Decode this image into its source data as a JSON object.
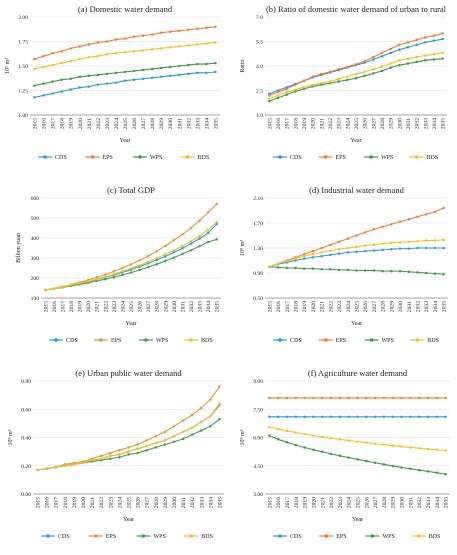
{
  "colors": {
    "CDS": "#2e9bcf",
    "EPS": "#f07d3a",
    "WPS": "#3d9a4b",
    "BDS": "#f5be2c",
    "EPS_c": "#d89b3a",
    "WPS_c": "#4b9a55",
    "grid": "#dcdcdc"
  },
  "years": [
    "2015",
    "2016",
    "2017",
    "2018",
    "2019",
    "2020",
    "2021",
    "2022",
    "2023",
    "2024",
    "2025",
    "2026",
    "2027",
    "2028",
    "2029",
    "2030",
    "2031",
    "2032",
    "2033",
    "2034",
    "2035"
  ],
  "years_f": [
    "2015",
    "2016",
    "2017",
    "2018",
    "2019",
    "2020",
    "2021",
    "2022",
    "2023",
    "2024",
    "2025",
    "2026",
    "2027",
    "2028",
    "2029",
    "2030",
    "2031",
    "2032",
    "2033",
    "2034",
    "2035"
  ],
  "years_c": [
    "2015",
    "2016",
    "2017",
    "2018",
    "2019",
    "2020",
    "2021",
    "2022",
    "2023",
    "2024",
    "2025",
    "2026",
    "2027",
    "2028",
    "2029",
    "2030",
    "2031",
    "2032",
    "2033",
    "2034",
    "2035"
  ],
  "chart_data": [
    {
      "id": "a",
      "type": "line",
      "title": "(a) Domestic water demand",
      "xlabel": "Year",
      "ylabel": "10⁹ m³",
      "ylim": [
        1.0,
        2.0
      ],
      "yticks": [
        "1.00",
        "1.25",
        "1.50",
        "1.75",
        "2.00"
      ],
      "ytick_values": [
        1.0,
        1.25,
        1.5,
        1.75,
        2.0
      ],
      "legend_position": "bottom",
      "series": [
        {
          "name": "CDS",
          "color": "#2e9bcf",
          "values": [
            1.18,
            1.2,
            1.22,
            1.24,
            1.26,
            1.28,
            1.29,
            1.31,
            1.32,
            1.33,
            1.35,
            1.36,
            1.37,
            1.38,
            1.39,
            1.4,
            1.41,
            1.42,
            1.43,
            1.43,
            1.44
          ]
        },
        {
          "name": "EPS",
          "color": "#f07d3a",
          "values": [
            1.57,
            1.6,
            1.63,
            1.65,
            1.68,
            1.7,
            1.72,
            1.74,
            1.75,
            1.77,
            1.78,
            1.8,
            1.81,
            1.82,
            1.84,
            1.85,
            1.86,
            1.87,
            1.88,
            1.89,
            1.9
          ]
        },
        {
          "name": "WPS",
          "color": "#3d9a4b",
          "values": [
            1.3,
            1.32,
            1.34,
            1.36,
            1.37,
            1.39,
            1.4,
            1.41,
            1.42,
            1.43,
            1.44,
            1.45,
            1.46,
            1.47,
            1.48,
            1.49,
            1.5,
            1.51,
            1.52,
            1.52,
            1.53
          ]
        },
        {
          "name": "BDS",
          "color": "#f5be2c",
          "values": [
            1.47,
            1.49,
            1.51,
            1.53,
            1.55,
            1.57,
            1.59,
            1.6,
            1.62,
            1.63,
            1.64,
            1.65,
            1.66,
            1.67,
            1.68,
            1.69,
            1.7,
            1.71,
            1.72,
            1.73,
            1.74
          ]
        }
      ]
    },
    {
      "id": "b",
      "type": "line",
      "title": "(b) Ratio of domestic water demand of urban to rural",
      "xlabel": "Year",
      "ylabel": "Ratio",
      "ylim": [
        1.0,
        7.0
      ],
      "yticks": [
        "1.0",
        "2.5",
        "4.0",
        "5.5",
        "7.0"
      ],
      "ytick_values": [
        1.0,
        2.5,
        4.0,
        5.5,
        7.0
      ],
      "legend_position": "bottom",
      "series": [
        {
          "name": "CDS",
          "color": "#2e9bcf",
          "values": [
            2.3,
            2.5,
            2.7,
            2.9,
            3.1,
            3.3,
            3.45,
            3.6,
            3.75,
            3.9,
            4.05,
            4.2,
            4.4,
            4.6,
            4.8,
            5.0,
            5.15,
            5.3,
            5.45,
            5.55,
            5.65
          ]
        },
        {
          "name": "EPS",
          "color": "#f07d3a",
          "values": [
            2.2,
            2.4,
            2.6,
            2.85,
            3.1,
            3.35,
            3.5,
            3.65,
            3.8,
            3.95,
            4.1,
            4.3,
            4.55,
            4.8,
            5.05,
            5.3,
            5.45,
            5.6,
            5.75,
            5.85,
            6.0
          ]
        },
        {
          "name": "WPS",
          "color": "#3d9a4b",
          "values": [
            1.85,
            2.05,
            2.25,
            2.45,
            2.6,
            2.75,
            2.85,
            2.95,
            3.05,
            3.15,
            3.25,
            3.4,
            3.55,
            3.7,
            3.9,
            4.05,
            4.15,
            4.25,
            4.35,
            4.4,
            4.45
          ]
        },
        {
          "name": "BDS",
          "color": "#f5be2c",
          "values": [
            2.0,
            2.2,
            2.4,
            2.55,
            2.7,
            2.85,
            2.95,
            3.05,
            3.2,
            3.35,
            3.5,
            3.65,
            3.8,
            3.95,
            4.15,
            4.35,
            4.45,
            4.55,
            4.65,
            4.72,
            4.8
          ]
        }
      ]
    },
    {
      "id": "c",
      "type": "line",
      "title": "(c) Total GDP",
      "xlabel": "Year",
      "ylabel": "Billion yuan",
      "ylim": [
        100,
        600
      ],
      "yticks": [
        "100",
        "200",
        "300",
        "400",
        "500",
        "600"
      ],
      "ytick_values": [
        100,
        200,
        300,
        400,
        500,
        600
      ],
      "legend_position": "bottom",
      "series": [
        {
          "name": "CDS",
          "color": "#2e9bcf",
          "values": [
            140,
            147,
            155,
            163,
            172,
            182,
            192,
            203,
            215,
            228,
            242,
            257,
            273,
            290,
            308,
            328,
            349,
            372,
            397,
            425,
            470
          ]
        },
        {
          "name": "EPS",
          "color": "#d89b3a",
          "values": [
            140,
            148,
            157,
            167,
            178,
            190,
            203,
            217,
            233,
            250,
            268,
            288,
            310,
            334,
            360,
            388,
            418,
            450,
            487,
            528,
            570
          ]
        },
        {
          "name": "WPS",
          "color": "#4b9a55",
          "values": [
            140,
            146,
            153,
            160,
            168,
            176,
            185,
            194,
            204,
            215,
            227,
            240,
            254,
            269,
            285,
            302,
            320,
            339,
            359,
            380,
            393
          ]
        },
        {
          "name": "BDS",
          "color": "#f5be2c",
          "values": [
            140,
            147,
            155,
            164,
            173,
            183,
            194,
            206,
            219,
            233,
            248,
            264,
            281,
            299,
            318,
            338,
            360,
            384,
            410,
            440,
            480
          ]
        }
      ]
    },
    {
      "id": "d",
      "type": "line",
      "title": "(d) Industrial water demand",
      "xlabel": "Year",
      "ylabel": "10⁹ m³",
      "ylim": [
        0.5,
        2.1
      ],
      "yticks": [
        "0.50",
        "0.90",
        "1.30",
        "1.70",
        "2.10"
      ],
      "ytick_values": [
        0.5,
        0.9,
        1.3,
        1.7,
        2.1
      ],
      "legend_position": "bottom",
      "series": [
        {
          "name": "CDS",
          "color": "#2e9bcf",
          "values": [
            1.0,
            1.04,
            1.07,
            1.1,
            1.13,
            1.15,
            1.17,
            1.19,
            1.21,
            1.23,
            1.24,
            1.25,
            1.26,
            1.27,
            1.28,
            1.29,
            1.29,
            1.3,
            1.3,
            1.3,
            1.3
          ]
        },
        {
          "name": "EPS",
          "color": "#f07d3a",
          "values": [
            1.0,
            1.05,
            1.1,
            1.15,
            1.2,
            1.25,
            1.3,
            1.35,
            1.4,
            1.45,
            1.5,
            1.55,
            1.6,
            1.64,
            1.68,
            1.72,
            1.76,
            1.8,
            1.84,
            1.88,
            1.94
          ]
        },
        {
          "name": "WPS",
          "color": "#3d9a4b",
          "values": [
            1.0,
            0.99,
            0.98,
            0.98,
            0.97,
            0.97,
            0.96,
            0.96,
            0.95,
            0.95,
            0.94,
            0.94,
            0.94,
            0.93,
            0.93,
            0.93,
            0.92,
            0.91,
            0.9,
            0.89,
            0.88
          ]
        },
        {
          "name": "BDS",
          "color": "#f5be2c",
          "values": [
            1.0,
            1.05,
            1.09,
            1.13,
            1.17,
            1.2,
            1.23,
            1.26,
            1.28,
            1.3,
            1.32,
            1.34,
            1.35,
            1.37,
            1.38,
            1.39,
            1.4,
            1.41,
            1.42,
            1.42,
            1.43
          ]
        }
      ]
    },
    {
      "id": "e",
      "type": "line",
      "title": "(e) Urban public water demand",
      "xlabel": "Year",
      "ylabel": "10⁹ m³",
      "ylim": [
        0.0,
        0.8
      ],
      "yticks": [
        "0.00",
        "0.20",
        "0.40",
        "0.60",
        "0.80"
      ],
      "ytick_values": [
        0.0,
        0.2,
        0.4,
        0.6,
        0.8
      ],
      "legend_position": "bottom",
      "series": [
        {
          "name": "CDS",
          "color": "#2e9bcf",
          "values": [
            0.17,
            0.18,
            0.19,
            0.2,
            0.21,
            0.22,
            0.24,
            0.25,
            0.27,
            0.28,
            0.3,
            0.32,
            0.34,
            0.36,
            0.38,
            0.41,
            0.44,
            0.47,
            0.51,
            0.55,
            0.63
          ]
        },
        {
          "name": "EPS",
          "color": "#d89b3a",
          "values": [
            0.17,
            0.18,
            0.19,
            0.21,
            0.22,
            0.23,
            0.25,
            0.27,
            0.29,
            0.31,
            0.33,
            0.35,
            0.38,
            0.41,
            0.44,
            0.48,
            0.52,
            0.56,
            0.61,
            0.67,
            0.76
          ]
        },
        {
          "name": "WPS",
          "color": "#4b9a55",
          "values": [
            0.17,
            0.18,
            0.19,
            0.2,
            0.21,
            0.22,
            0.23,
            0.24,
            0.25,
            0.26,
            0.28,
            0.29,
            0.31,
            0.33,
            0.35,
            0.37,
            0.39,
            0.42,
            0.45,
            0.48,
            0.53
          ]
        },
        {
          "name": "BDS",
          "color": "#f5be2c",
          "values": [
            0.17,
            0.18,
            0.19,
            0.2,
            0.21,
            0.22,
            0.24,
            0.25,
            0.27,
            0.28,
            0.3,
            0.32,
            0.34,
            0.36,
            0.38,
            0.41,
            0.44,
            0.47,
            0.51,
            0.55,
            0.64
          ]
        }
      ]
    },
    {
      "id": "f",
      "type": "line",
      "title": "(f) Agriculture water demand",
      "xlabel": "Year",
      "ylabel": "10⁹ m³",
      "ylim": [
        3.0,
        9.0
      ],
      "yticks": [
        "3.00",
        "4.50",
        "6.00",
        "7.50",
        "9.00"
      ],
      "ytick_values": [
        3.0,
        4.5,
        6.0,
        7.5,
        9.0
      ],
      "legend_position": "bottom",
      "series": [
        {
          "name": "CDS",
          "color": "#2e9bcf",
          "values": [
            7.1,
            7.1,
            7.1,
            7.1,
            7.1,
            7.1,
            7.1,
            7.1,
            7.1,
            7.1,
            7.1,
            7.1,
            7.1,
            7.1,
            7.1,
            7.1,
            7.1,
            7.1,
            7.1,
            7.1,
            7.1
          ]
        },
        {
          "name": "EPS",
          "color": "#f07d3a",
          "values": [
            8.1,
            8.1,
            8.1,
            8.1,
            8.1,
            8.1,
            8.1,
            8.1,
            8.1,
            8.1,
            8.1,
            8.1,
            8.1,
            8.1,
            8.1,
            8.1,
            8.1,
            8.1,
            8.1,
            8.1,
            8.1
          ]
        },
        {
          "name": "WPS",
          "color": "#3d9a4b",
          "values": [
            6.1,
            5.9,
            5.75,
            5.6,
            5.47,
            5.35,
            5.24,
            5.13,
            5.03,
            4.93,
            4.84,
            4.75,
            4.66,
            4.57,
            4.49,
            4.41,
            4.34,
            4.27,
            4.2,
            4.13,
            4.05
          ]
        },
        {
          "name": "BDS",
          "color": "#f5be2c",
          "values": [
            6.55,
            6.45,
            6.35,
            6.26,
            6.18,
            6.1,
            6.03,
            5.96,
            5.9,
            5.84,
            5.78,
            5.73,
            5.67,
            5.62,
            5.57,
            5.52,
            5.47,
            5.43,
            5.39,
            5.35,
            5.31
          ]
        }
      ]
    }
  ]
}
